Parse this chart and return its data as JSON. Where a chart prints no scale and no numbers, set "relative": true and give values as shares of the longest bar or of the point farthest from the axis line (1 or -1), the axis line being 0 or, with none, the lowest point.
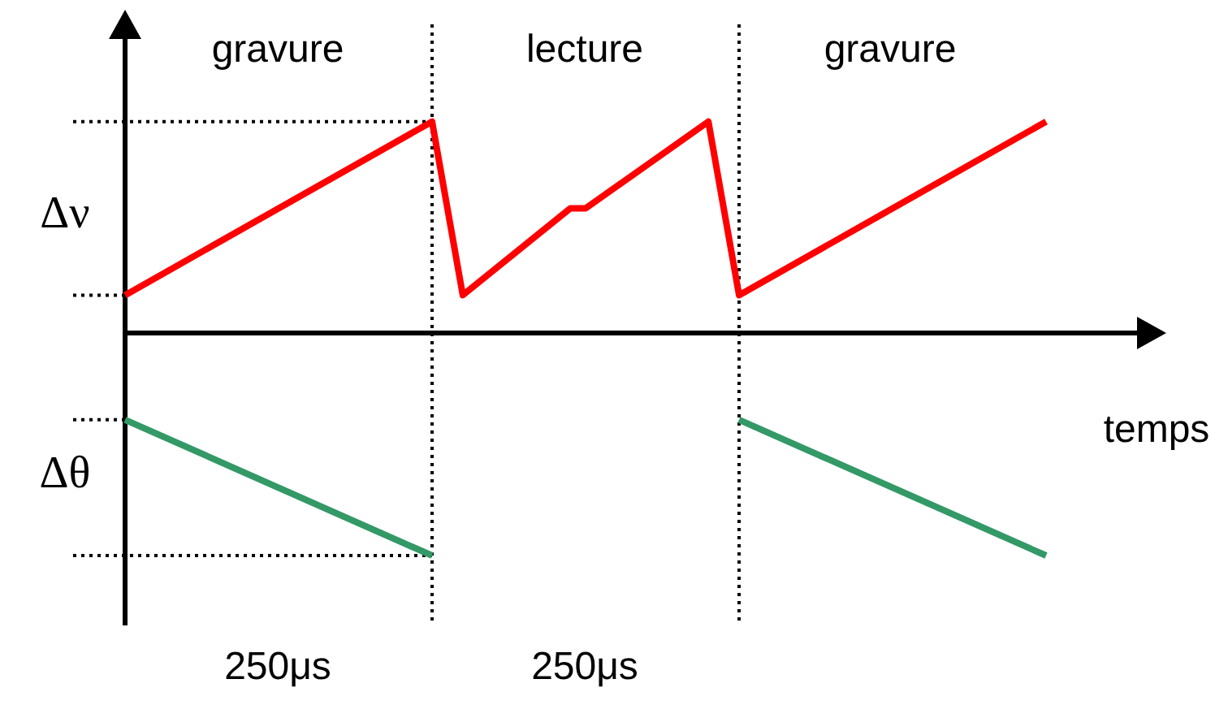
{
  "chart_data": {
    "type": "line",
    "relative": true,
    "xlabel": "temps",
    "categories": [
      null,
      null,
      null,
      null,
      null,
      null,
      null,
      null,
      null,
      null,
      null,
      null,
      null,
      null,
      null,
      null,
      null,
      null,
      null,
      null,
      null,
      null,
      null,
      null,
      null,
      null,
      null,
      null,
      null,
      null,
      null,
      null,
      null,
      null,
      null,
      null,
      null,
      null,
      null,
      null,
      null,
      null,
      null,
      null,
      null,
      null,
      null,
      null,
      null,
      null,
      null,
      null,
      null,
      null,
      null,
      null,
      null,
      null,
      null,
      null,
      null,
      null,
      null,
      null,
      null,
      null,
      null
    ],
    "series": [
      {
        "color": "#ff0000",
        "values": [
          0.17,
          null,
          null,
          null,
          null,
          null,
          null,
          null,
          null,
          null,
          null,
          null,
          null,
          null,
          null,
          null,
          null,
          null,
          null,
          null,
          0.95,
          null,
          0.17,
          null,
          null,
          null,
          null,
          null,
          null,
          0.56,
          0.56,
          null,
          null,
          null,
          null,
          null,
          null,
          null,
          0.95,
          null,
          0.17,
          null,
          null,
          null,
          null,
          null,
          null,
          null,
          null,
          null,
          null,
          null,
          null,
          null,
          null,
          null,
          null,
          null,
          null,
          null,
          0.95,
          null,
          null,
          null,
          null,
          null,
          null
        ]
      },
      {
        "color": "#339966",
        "values": [
          -0.39,
          null,
          null,
          null,
          null,
          null,
          null,
          null,
          null,
          null,
          null,
          null,
          null,
          null,
          null,
          null,
          null,
          null,
          null,
          null,
          -1,
          null,
          null,
          null,
          null,
          null,
          null,
          null,
          null,
          null,
          null,
          null,
          null,
          null,
          null,
          null,
          null,
          null,
          null,
          null,
          null,
          null,
          null,
          null,
          null,
          null,
          null,
          null,
          null,
          null,
          null,
          null,
          null,
          null,
          null,
          null,
          null,
          null,
          null,
          null,
          null,
          null,
          null,
          null,
          null,
          null,
          null
        ]
      },
      {
        "color": "#339966",
        "values": [
          null,
          null,
          null,
          null,
          null,
          null,
          null,
          null,
          null,
          null,
          null,
          null,
          null,
          null,
          null,
          null,
          null,
          null,
          null,
          null,
          null,
          null,
          null,
          null,
          null,
          null,
          null,
          null,
          null,
          null,
          null,
          null,
          null,
          null,
          null,
          null,
          null,
          null,
          null,
          null,
          -0.39,
          null,
          null,
          null,
          null,
          null,
          null,
          null,
          null,
          null,
          null,
          null,
          null,
          null,
          null,
          null,
          null,
          null,
          null,
          null,
          -1,
          null,
          null,
          null,
          null,
          null,
          null
        ]
      }
    ],
    "ref_lines": [
      {
        "axis": "y",
        "value": 0.95,
        "line_style": "dotted"
      },
      {
        "axis": "y",
        "value": -1,
        "line_style": "dotted"
      }
    ],
    "annotations": [
      "Δν",
      "Δθ",
      "250μs",
      "250μs",
      "gravure",
      "lecture",
      "gravure"
    ],
    "marker": "none",
    "line_style": "solid"
  }
}
